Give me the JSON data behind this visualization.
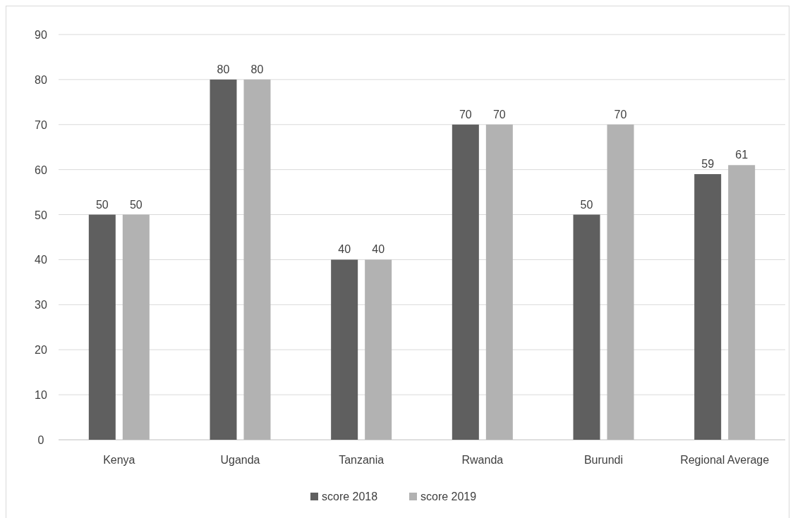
{
  "chart_data": {
    "type": "bar",
    "categories": [
      "Kenya",
      "Uganda",
      "Tanzania",
      "Rwanda",
      "Burundi",
      "Regional Average"
    ],
    "series": [
      {
        "name": "score 2018",
        "color": "#5f5f5f",
        "values": [
          50,
          80,
          40,
          70,
          50,
          59
        ]
      },
      {
        "name": "score 2019",
        "color": "#b2b2b2",
        "values": [
          50,
          80,
          40,
          70,
          70,
          61
        ]
      }
    ],
    "ylim": [
      0,
      90
    ],
    "yticks": [
      0,
      10,
      20,
      30,
      40,
      50,
      60,
      70,
      80,
      90
    ],
    "grid": "y",
    "legend": "bottom",
    "data_labels": true
  }
}
